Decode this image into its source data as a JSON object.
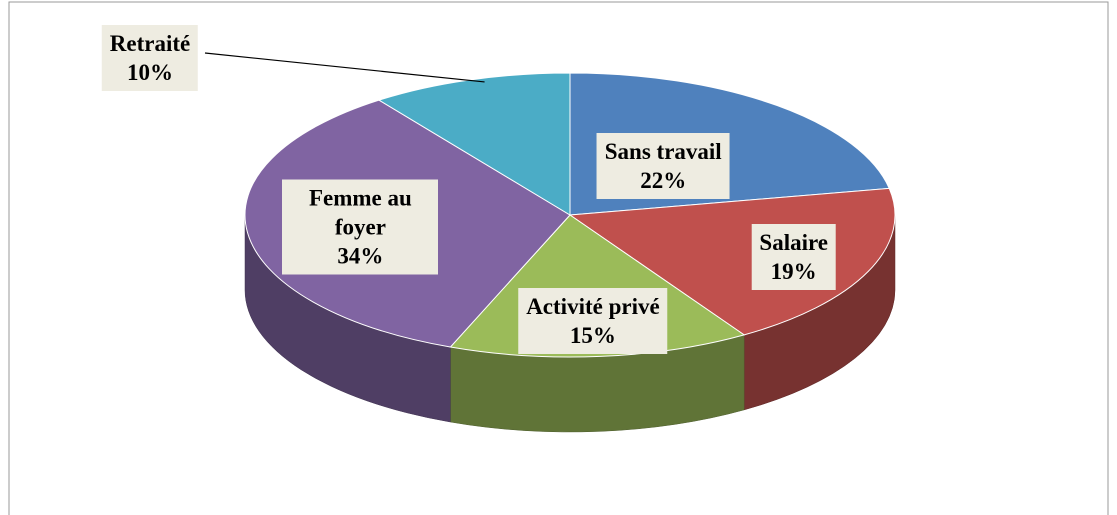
{
  "chart_data": {
    "type": "pie",
    "categories": [
      "Sans travail",
      "Salaire",
      "Activité privé",
      "Femme au foyer",
      "Retraité"
    ],
    "values": [
      22,
      19,
      15,
      34,
      10
    ],
    "value_labels": [
      "22%",
      "19%",
      "15%",
      "34%",
      "10%"
    ],
    "colors": [
      "#4f81bd",
      "#c0504d",
      "#9bbb59",
      "#8064a2",
      "#4bacc6"
    ]
  }
}
